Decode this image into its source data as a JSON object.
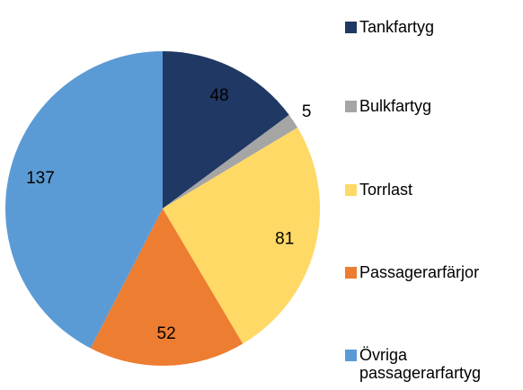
{
  "chart_data": {
    "type": "pie",
    "categories": [
      "Tankfartyg",
      "Bulkfartyg",
      "Torrlast",
      "Passagerarfärjor",
      "Övriga passagerarfartyg"
    ],
    "values": [
      48,
      5,
      81,
      52,
      137
    ],
    "colors": [
      "#203864",
      "#a5a5a5",
      "#ffd966",
      "#ed7d31",
      "#5b9bd5"
    ],
    "legend": "right"
  }
}
